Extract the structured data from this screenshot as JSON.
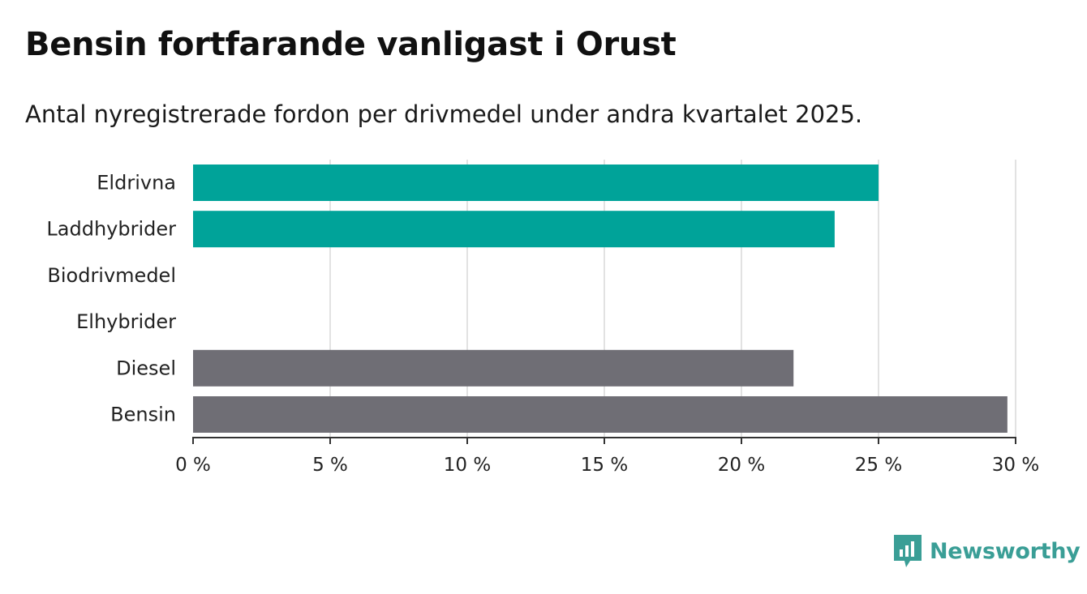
{
  "title": "Bensin fortfarande vanligast i Orust",
  "subtitle": "Antal nyregistrerade fordon per drivmedel under andra kvartalet 2025.",
  "chart_data": {
    "type": "bar",
    "orientation": "horizontal",
    "categories": [
      "Eldrivna",
      "Laddhybrider",
      "Biodrivmedel",
      "Elhybrider",
      "Diesel",
      "Bensin"
    ],
    "values": [
      25.0,
      23.4,
      0,
      0,
      21.9,
      29.7
    ],
    "bar_colors": [
      "#00a399",
      "#00a399",
      "#00a399",
      "#00a399",
      "#6f6e75",
      "#6f6e75"
    ],
    "xlim": [
      0,
      30
    ],
    "xticks": [
      0,
      5,
      10,
      15,
      20,
      25,
      30
    ],
    "xtick_labels": [
      "0 %",
      "5 %",
      "10 %",
      "15 %",
      "20 %",
      "25 %",
      "30 %"
    ],
    "grid": "vertical"
  },
  "brand": {
    "name": "Newsworthy",
    "color": "#3a9e96",
    "icon": "bar-chart-icon"
  }
}
